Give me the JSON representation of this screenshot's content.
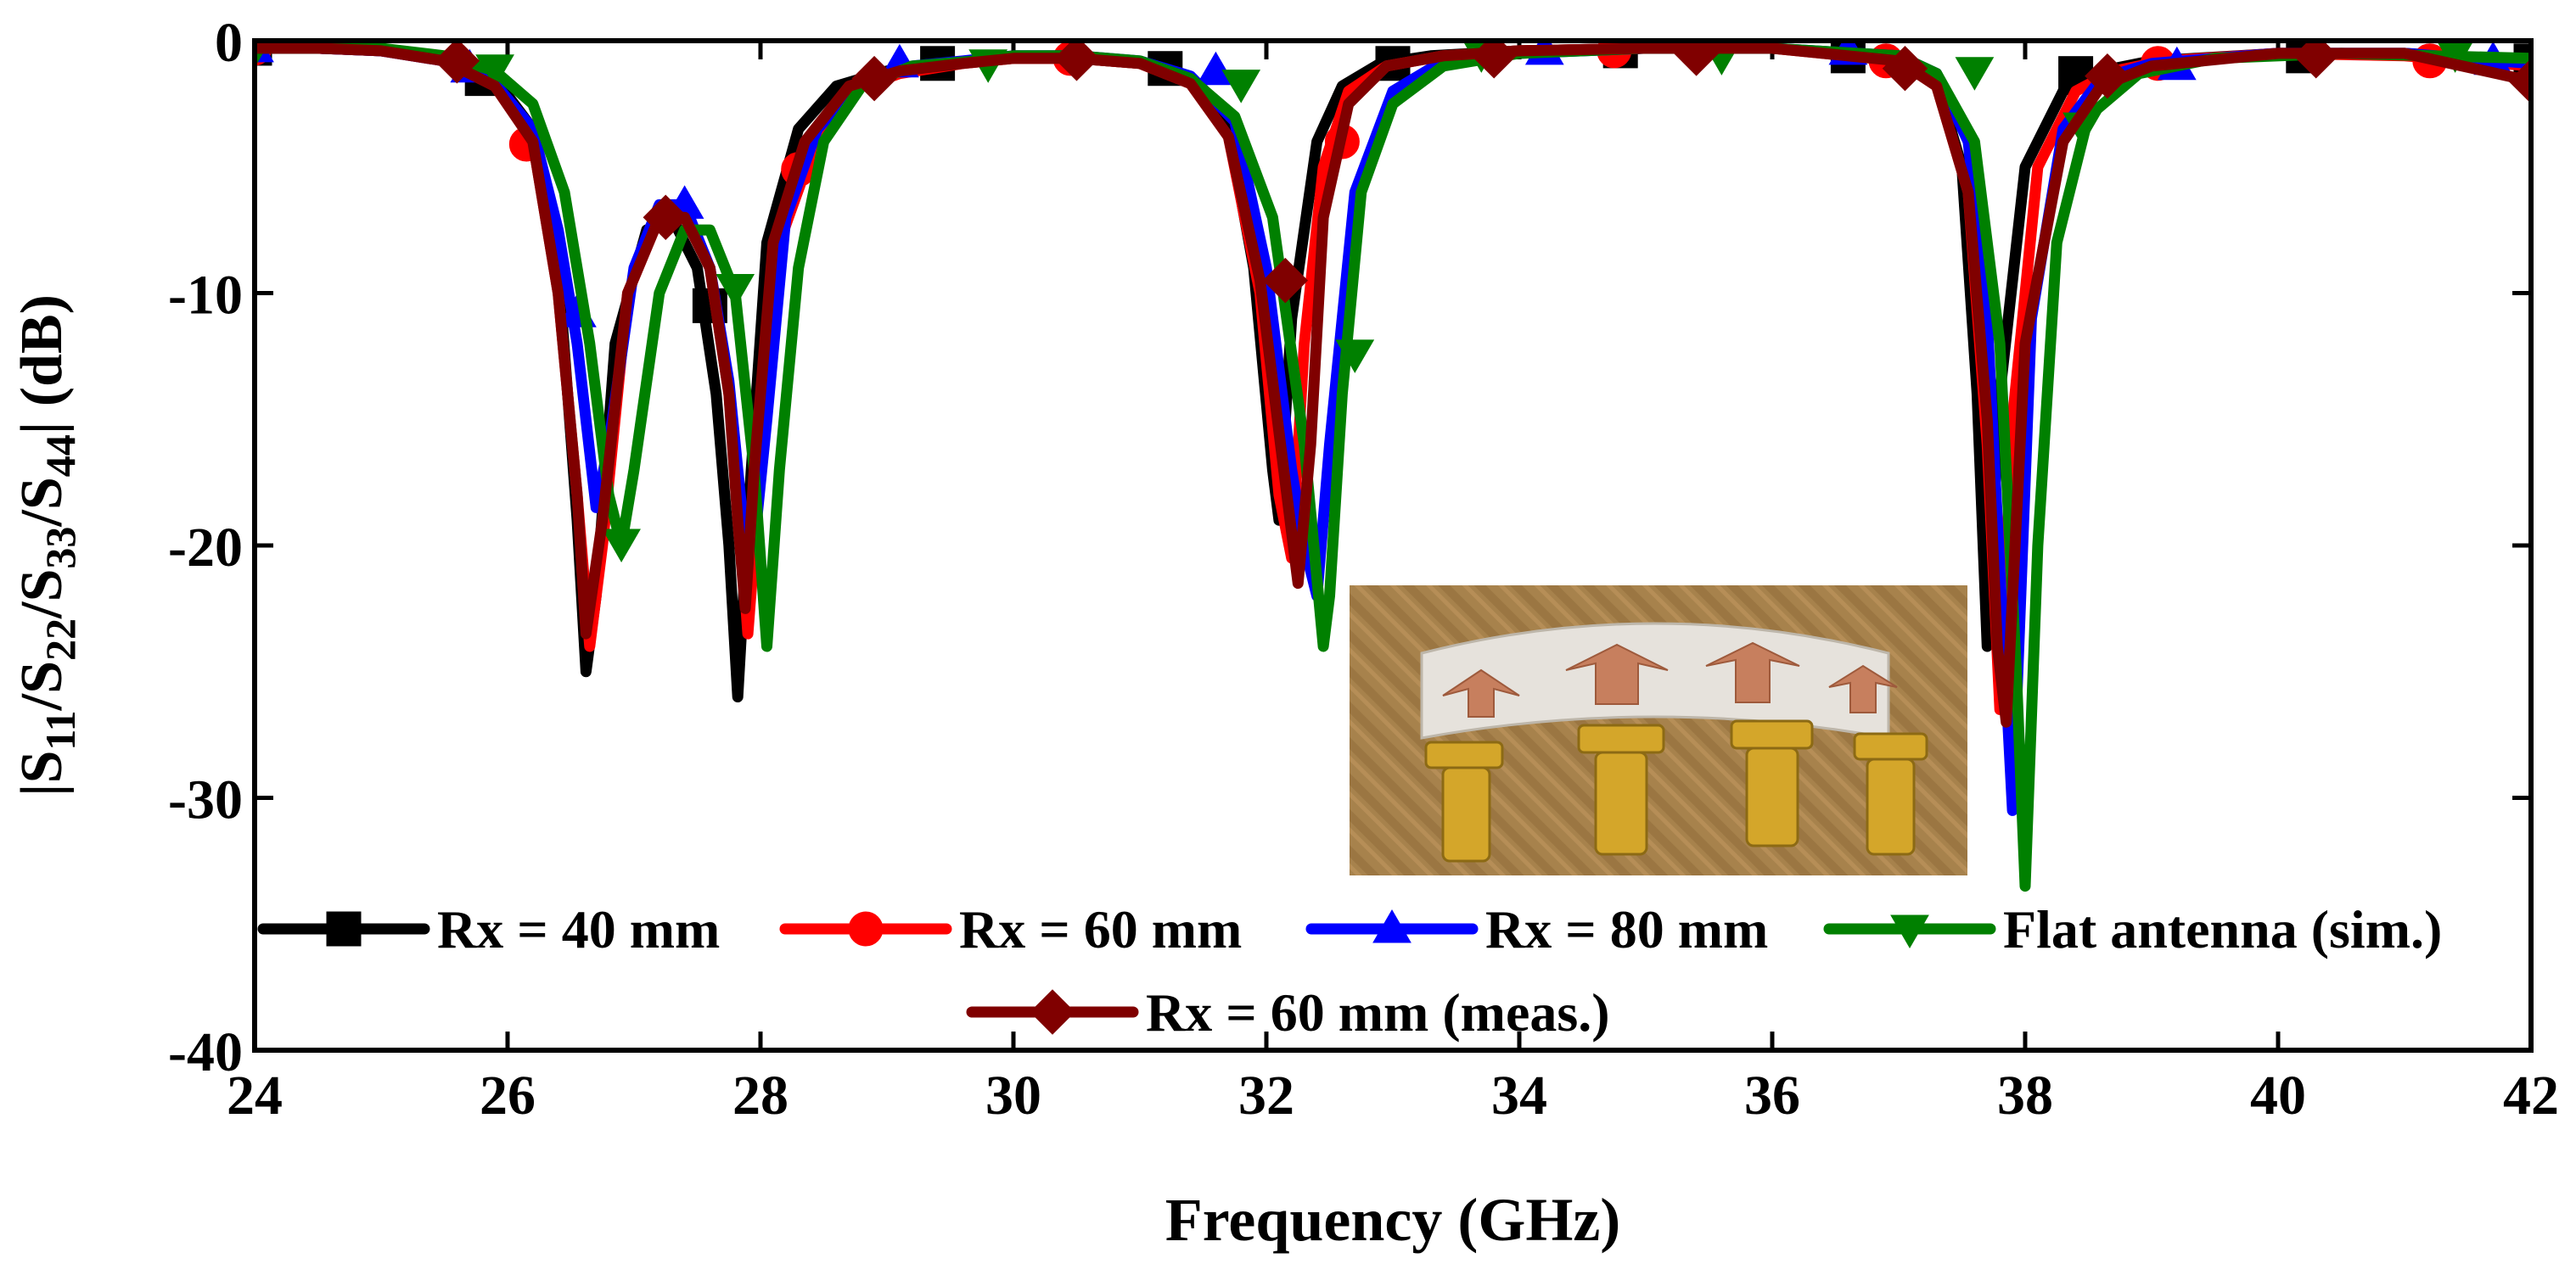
{
  "chart_data": {
    "type": "line",
    "title": "",
    "xlabel": "Frequency (GHz)",
    "ylabel_parts": [
      "|S",
      "11",
      "/S",
      "22",
      "/S",
      "33",
      "/S",
      "44",
      "| (dB)"
    ],
    "xlim": [
      24,
      42
    ],
    "ylim": [
      -40,
      0
    ],
    "xticks": [
      24,
      26,
      28,
      30,
      32,
      34,
      36,
      38,
      40,
      42
    ],
    "yticks": [
      0,
      -10,
      -20,
      -30,
      -40
    ],
    "grid": false,
    "legend_position": "bottom-center",
    "inset_caption": "",
    "series": [
      {
        "name": "Rx = 40 mm",
        "color": "#000000",
        "marker": "square",
        "x": [
          24.0,
          24.5,
          25.0,
          25.5,
          25.9,
          26.2,
          26.4,
          26.55,
          26.62,
          26.7,
          26.85,
          27.1,
          27.3,
          27.5,
          27.65,
          27.75,
          27.82,
          27.9,
          28.05,
          28.3,
          28.6,
          29.0,
          29.5,
          30.0,
          30.5,
          31.0,
          31.4,
          31.7,
          31.9,
          32.05,
          32.1,
          32.2,
          32.4,
          32.6,
          32.9,
          33.3,
          34.0,
          35.0,
          36.0,
          37.0,
          37.3,
          37.5,
          37.62,
          37.7,
          37.8,
          38.0,
          38.3,
          38.6,
          39.0,
          40.0,
          41.0,
          42.0
        ],
        "y": [
          -0.3,
          -0.3,
          -0.4,
          -0.7,
          -1.5,
          -3.5,
          -9,
          -19,
          -25,
          -22,
          -12,
          -7.5,
          -7,
          -9,
          -14,
          -20,
          -26,
          -19,
          -8,
          -3.5,
          -1.8,
          -1.2,
          -0.9,
          -0.7,
          -0.7,
          -0.9,
          -1.6,
          -3.5,
          -9,
          -17,
          -19,
          -11,
          -4,
          -1.8,
          -0.9,
          -0.6,
          -0.4,
          -0.3,
          -0.3,
          -0.7,
          -1.6,
          -5,
          -14,
          -24,
          -14,
          -5,
          -2,
          -1.2,
          -0.8,
          -0.5,
          -0.5,
          -0.8
        ],
        "marker_points": [
          [
            24.0,
            -0.3
          ],
          [
            25.8,
            -1.5
          ],
          [
            27.6,
            -10.5
          ],
          [
            29.4,
            -0.9
          ],
          [
            31.2,
            -1.1
          ],
          [
            33.0,
            -0.9
          ],
          [
            34.8,
            -0.4
          ],
          [
            36.6,
            -0.6
          ],
          [
            38.4,
            -1.3
          ],
          [
            40.2,
            -0.6
          ],
          [
            42.0,
            -0.8
          ]
        ]
      },
      {
        "name": "Rx = 60 mm",
        "color": "#ff0000",
        "marker": "circle",
        "x": [
          24.0,
          24.5,
          25.0,
          25.5,
          25.9,
          26.2,
          26.4,
          26.55,
          26.65,
          26.75,
          26.95,
          27.2,
          27.4,
          27.6,
          27.75,
          27.85,
          27.9,
          28.0,
          28.15,
          28.4,
          28.7,
          29.1,
          29.6,
          30.0,
          30.5,
          31.0,
          31.4,
          31.7,
          31.95,
          32.1,
          32.2,
          32.3,
          32.45,
          32.65,
          32.95,
          33.4,
          34.0,
          35.0,
          36.0,
          37.0,
          37.3,
          37.55,
          37.7,
          37.8,
          37.9,
          38.1,
          38.4,
          38.7,
          39.1,
          40.0,
          41.0,
          42.0
        ],
        "y": [
          -0.3,
          -0.3,
          -0.4,
          -0.8,
          -1.8,
          -4,
          -10,
          -18,
          -24,
          -20,
          -10,
          -7,
          -7,
          -9,
          -14,
          -20,
          -23.5,
          -17,
          -8,
          -4.5,
          -2,
          -1.3,
          -0.9,
          -0.7,
          -0.7,
          -0.9,
          -1.7,
          -3.8,
          -10,
          -18,
          -20.5,
          -12,
          -5,
          -2,
          -1,
          -0.6,
          -0.4,
          -0.3,
          -0.3,
          -0.8,
          -1.8,
          -6,
          -16,
          -26.5,
          -15,
          -5,
          -2,
          -1.2,
          -0.8,
          -0.5,
          -0.6,
          -1.0
        ],
        "marker_points": [
          [
            24.0,
            -0.3
          ],
          [
            26.15,
            -4.1
          ],
          [
            28.3,
            -5.1
          ],
          [
            30.45,
            -0.7
          ],
          [
            32.6,
            -4.0
          ],
          [
            34.75,
            -0.4
          ],
          [
            36.9,
            -0.8
          ],
          [
            39.05,
            -0.9
          ],
          [
            41.2,
            -0.8
          ]
        ]
      },
      {
        "name": "Rx = 80 mm",
        "color": "#0000ff",
        "marker": "triangle-up",
        "x": [
          24.0,
          24.5,
          25.0,
          25.5,
          25.9,
          26.2,
          26.4,
          26.55,
          26.7,
          26.8,
          27.0,
          27.2,
          27.4,
          27.6,
          27.75,
          27.85,
          27.95,
          28.05,
          28.2,
          28.45,
          28.8,
          29.2,
          29.6,
          30.0,
          30.5,
          31.0,
          31.4,
          31.75,
          32.0,
          32.2,
          32.3,
          32.4,
          32.5,
          32.7,
          33.0,
          33.4,
          34.0,
          35.0,
          36.0,
          37.0,
          37.3,
          37.55,
          37.7,
          37.8,
          37.9,
          38.05,
          38.3,
          38.6,
          39.0,
          40.0,
          41.0,
          42.0
        ],
        "y": [
          -0.3,
          -0.3,
          -0.4,
          -0.8,
          -1.7,
          -3.5,
          -7.5,
          -12,
          -18.5,
          -16,
          -9,
          -6.5,
          -6.5,
          -9,
          -13.5,
          -18.5,
          -20,
          -15,
          -7,
          -3.5,
          -1.6,
          -1.0,
          -0.8,
          -0.6,
          -0.6,
          -0.8,
          -1.4,
          -3.2,
          -9,
          -17,
          -20,
          -22,
          -16,
          -6,
          -2,
          -0.8,
          -0.5,
          -0.3,
          -0.3,
          -0.6,
          -1.3,
          -4,
          -11,
          -21,
          -30.5,
          -11,
          -3.5,
          -1.5,
          -0.9,
          -0.5,
          -0.5,
          -0.9
        ],
        "marker_points": [
          [
            24.0,
            -0.3
          ],
          [
            25.7,
            -1.1
          ],
          [
            26.55,
            -10.8
          ],
          [
            27.4,
            -6.5
          ],
          [
            29.1,
            -0.9
          ],
          [
            31.6,
            -1.2
          ],
          [
            34.2,
            -0.4
          ],
          [
            36.6,
            -0.4
          ],
          [
            39.2,
            -1.0
          ],
          [
            41.7,
            -0.8
          ]
        ]
      },
      {
        "name": "Flat antenna (sim.)",
        "color": "#008000",
        "marker": "triangle-down",
        "x": [
          24.0,
          24.5,
          25.0,
          25.5,
          25.9,
          26.2,
          26.45,
          26.65,
          26.8,
          26.9,
          27.0,
          27.2,
          27.4,
          27.6,
          27.8,
          27.95,
          28.05,
          28.15,
          28.3,
          28.5,
          28.8,
          29.2,
          29.7,
          30.0,
          30.5,
          31.0,
          31.4,
          31.75,
          32.05,
          32.3,
          32.45,
          32.5,
          32.6,
          32.75,
          33.0,
          33.4,
          34.0,
          35.0,
          36.0,
          37.0,
          37.3,
          37.6,
          37.8,
          37.93,
          38.0,
          38.1,
          38.25,
          38.5,
          38.9,
          39.5,
          40.5,
          42.0
        ],
        "y": [
          -0.3,
          -0.3,
          -0.3,
          -0.6,
          -1.2,
          -2.5,
          -6,
          -12,
          -18,
          -20,
          -17,
          -10,
          -7.5,
          -7.5,
          -10,
          -17,
          -24,
          -17,
          -9,
          -4,
          -1.8,
          -1.0,
          -0.8,
          -0.6,
          -0.6,
          -0.8,
          -1.5,
          -3,
          -7,
          -16,
          -24,
          -22,
          -14,
          -6,
          -2.5,
          -1,
          -0.5,
          -0.3,
          -0.3,
          -0.6,
          -1.3,
          -4,
          -12,
          -25,
          -33.5,
          -20,
          -8,
          -3,
          -1.3,
          -0.7,
          -0.5,
          -0.7
        ],
        "marker_points": [
          [
            24.0,
            -0.3
          ],
          [
            25.9,
            -1.1
          ],
          [
            26.9,
            -19.9
          ],
          [
            27.8,
            -9.8
          ],
          [
            29.8,
            -0.9
          ],
          [
            31.8,
            -1.7
          ],
          [
            32.7,
            -12.4
          ],
          [
            33.7,
            -0.5
          ],
          [
            35.6,
            -0.6
          ],
          [
            37.6,
            -1.2
          ],
          [
            38.45,
            -3.4
          ],
          [
            41.4,
            -0.5
          ]
        ]
      },
      {
        "name": "Rx = 60 mm (meas.)",
        "color": "#800000",
        "marker": "diamond",
        "x": [
          24.0,
          24.5,
          25.0,
          25.5,
          25.9,
          26.2,
          26.4,
          26.55,
          26.62,
          26.75,
          26.95,
          27.2,
          27.4,
          27.6,
          27.75,
          27.82,
          27.88,
          27.95,
          28.1,
          28.35,
          28.7,
          29.1,
          29.6,
          30.0,
          30.5,
          31.0,
          31.4,
          31.7,
          31.95,
          32.15,
          32.25,
          32.35,
          32.45,
          32.65,
          32.95,
          33.4,
          34.0,
          35.0,
          36.0,
          37.0,
          37.3,
          37.55,
          37.7,
          37.78,
          37.85,
          38.0,
          38.3,
          38.6,
          39.0,
          40.0,
          41.0,
          42.0
        ],
        "y": [
          -0.3,
          -0.3,
          -0.4,
          -0.8,
          -1.8,
          -4,
          -10,
          -18,
          -23.5,
          -19,
          -10,
          -7,
          -7,
          -9,
          -14,
          -19,
          -22.5,
          -17,
          -8,
          -4,
          -1.8,
          -1.2,
          -0.9,
          -0.7,
          -0.7,
          -0.9,
          -1.7,
          -3.8,
          -9.5,
          -17.5,
          -21.5,
          -16,
          -7,
          -2.5,
          -1,
          -0.6,
          -0.4,
          -0.3,
          -0.3,
          -0.8,
          -1.8,
          -6,
          -15,
          -24,
          -27,
          -12,
          -4,
          -1.8,
          -1.0,
          -0.5,
          -0.5,
          -1.6
        ],
        "marker_points": [
          [
            25.6,
            -0.8
          ],
          [
            27.25,
            -7.0
          ],
          [
            28.9,
            -1.5
          ],
          [
            30.5,
            -0.7
          ],
          [
            32.15,
            -9.5
          ],
          [
            33.8,
            -0.6
          ],
          [
            35.4,
            -0.5
          ],
          [
            37.05,
            -1.1
          ],
          [
            38.65,
            -1.4
          ],
          [
            40.3,
            -0.6
          ],
          [
            42.0,
            -1.6
          ]
        ]
      }
    ]
  }
}
